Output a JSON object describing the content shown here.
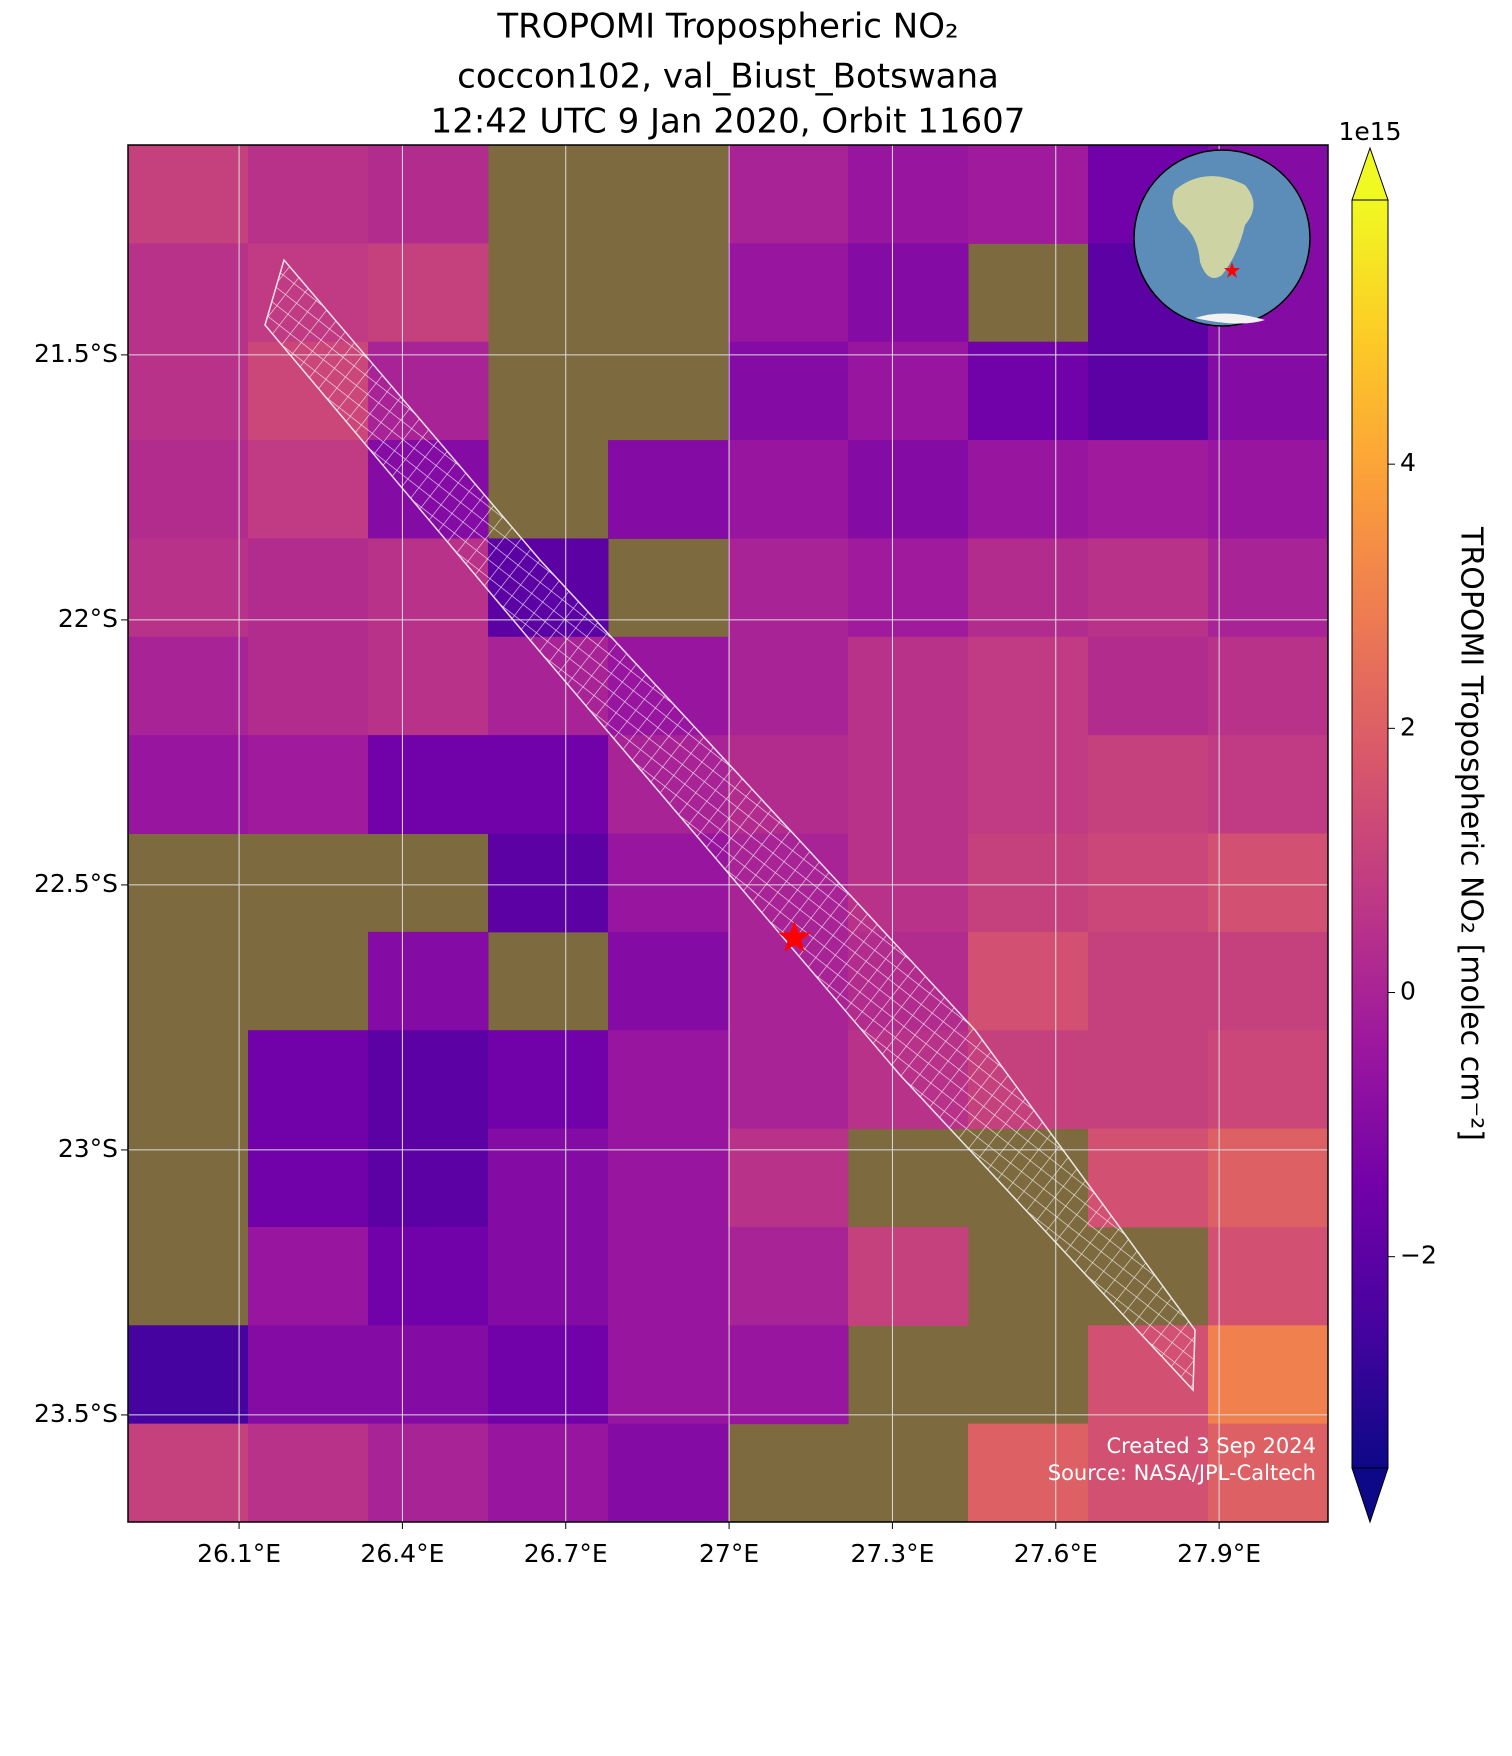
{
  "chart_data": {
    "type": "map",
    "title": [
      "TROPOMI Tropospheric NO₂",
      "coccon102, val_Biust_Botswana",
      "12:42 UTC 9 Jan 2020, Orbit 11607"
    ],
    "xlim": [
      25.896,
      28.1
    ],
    "ylim": [
      -23.702,
      -21.104
    ],
    "xticks": [
      {
        "value": 26.1,
        "label": "26.1°E"
      },
      {
        "value": 26.4,
        "label": "26.4°E"
      },
      {
        "value": 26.7,
        "label": "26.7°E"
      },
      {
        "value": 27,
        "label": "27°E"
      },
      {
        "value": 27.3,
        "label": "27.3°E"
      },
      {
        "value": 27.6,
        "label": "27.6°E"
      },
      {
        "value": 27.9,
        "label": "27.9°E"
      }
    ],
    "yticks": [
      {
        "value": -21.5,
        "label": "21.5°S"
      },
      {
        "value": -22,
        "label": "22°S"
      },
      {
        "value": -22.5,
        "label": "22.5°S"
      },
      {
        "value": -23,
        "label": "23°S"
      },
      {
        "value": -23.5,
        "label": "23.5°S"
      }
    ],
    "grid": true,
    "colormap": "plasma",
    "clim": [
      -3.6,
      6
    ],
    "cticks": [
      {
        "value": -2,
        "label": "−2"
      },
      0,
      2,
      4
    ],
    "c_offset": "1e15",
    "c_label": "TROPOMI Tropospheric NO₂ [molec cm⁻²]",
    "grid_values": [
      [
        1,
        0.5,
        0.3,
        null,
        null,
        0,
        -0.5,
        -0.3,
        -1.5,
        -1
      ],
      [
        0.5,
        0.8,
        1,
        null,
        null,
        -0.5,
        -1,
        null,
        -2,
        -1
      ],
      [
        0.5,
        1.2,
        0,
        null,
        null,
        -1,
        -0.5,
        -1.5,
        -2,
        -1
      ],
      [
        0.3,
        0.8,
        -1,
        null,
        -1,
        -0.5,
        -1,
        -0.5,
        -0.3,
        -0.5
      ],
      [
        0.5,
        0.3,
        0.5,
        -2,
        null,
        0,
        -0.3,
        0.3,
        0.5,
        0
      ],
      [
        0,
        0.3,
        0.5,
        0,
        -0.5,
        0,
        0.5,
        0.8,
        0.3,
        0.5
      ],
      [
        -0.5,
        -0.3,
        -1.5,
        -1.5,
        0,
        0.3,
        0.5,
        0.8,
        1,
        0.8
      ],
      [
        null,
        null,
        null,
        -2,
        -0.5,
        0,
        0.5,
        1,
        1.2,
        1.5
      ],
      [
        null,
        null,
        -1,
        null,
        -1,
        0,
        0.3,
        1.5,
        1,
        1
      ],
      [
        null,
        -1.5,
        -2,
        -1.5,
        -0.5,
        0,
        0.5,
        1,
        1,
        1.2
      ],
      [
        null,
        -1.5,
        -2,
        -1,
        -0.5,
        0.5,
        null,
        null,
        1.5,
        2
      ],
      [
        null,
        -0.5,
        -1.5,
        -1,
        -0.5,
        0,
        1,
        null,
        null,
        1.5
      ],
      [
        -2.5,
        -1,
        -1,
        -1.5,
        -0.5,
        -0.5,
        null,
        null,
        1.5,
        3
      ],
      [
        1,
        0.5,
        0,
        -0.5,
        -1,
        null,
        null,
        2,
        1.5,
        2
      ]
    ],
    "site": {
      "lon": 27.12,
      "lat": -22.6,
      "color": "#ff0000"
    },
    "credits": [
      "Created 3 Sep 2024",
      "Source: NASA/JPL-Caltech"
    ]
  }
}
